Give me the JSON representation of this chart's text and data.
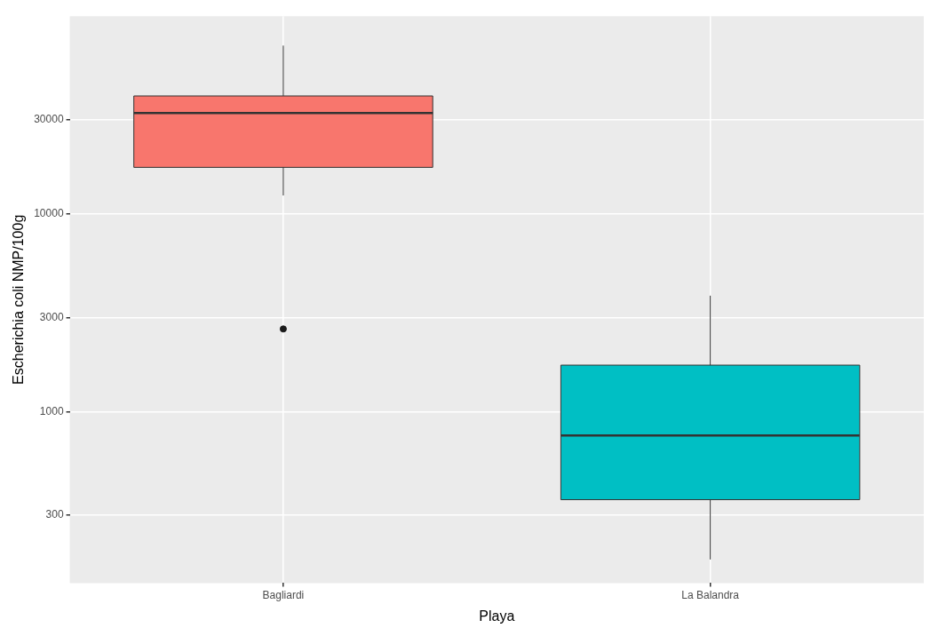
{
  "chart_data": {
    "type": "box",
    "xlabel": "Playa",
    "ylabel": "Escherichia coli NMP/100g",
    "categories": [
      "Bagliardi",
      "La Balandra"
    ],
    "colors": [
      "#f8766d",
      "#00bfc4"
    ],
    "boxes": [
      {
        "low": 12400,
        "q1": 17200,
        "median": 32400,
        "q3": 39500,
        "high": 71000,
        "outliers": [
          2620
        ]
      },
      {
        "low": 179,
        "q1": 359,
        "median": 759,
        "q3": 1720,
        "high": 3860
      }
    ],
    "log": "y",
    "ylim": [
      136,
      100000
    ],
    "yticks": [
      300,
      1000,
      3000,
      10000,
      30000
    ],
    "grid": true,
    "legend": false
  }
}
